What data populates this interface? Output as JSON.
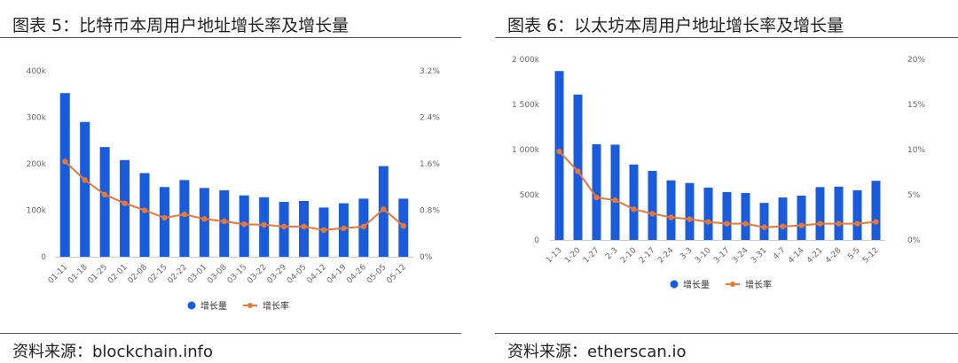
{
  "chart_data": [
    {
      "type": "bar+line",
      "title": "图表 5：比特币本周用户地址增长率及增长量",
      "source": "资料来源：blockchain.info",
      "categories": [
        "01-11",
        "01-18",
        "01-25",
        "02-01",
        "02-08",
        "02-15",
        "02-22",
        "03-01",
        "03-08",
        "03-15",
        "03-22",
        "03-29",
        "04-05",
        "04-12",
        "04-19",
        "04-26",
        "05-05",
        "05-12"
      ],
      "series": [
        {
          "name": "增长量",
          "type": "bar",
          "axis": "left",
          "color": "#1a5bdc",
          "values": [
            352000,
            290000,
            236000,
            208000,
            180000,
            150000,
            165000,
            148000,
            143000,
            132000,
            128000,
            118000,
            120000,
            106000,
            115000,
            125000,
            195000,
            125000
          ]
        },
        {
          "name": "增长率",
          "type": "line",
          "axis": "right",
          "color": "#e8773a",
          "values": [
            1.64,
            1.32,
            1.07,
            0.92,
            0.8,
            0.67,
            0.73,
            0.65,
            0.61,
            0.56,
            0.55,
            0.52,
            0.52,
            0.46,
            0.49,
            0.52,
            0.82,
            0.53
          ]
        }
      ],
      "yleft": {
        "min": 0,
        "max": 400000,
        "ticks": [
          0,
          100000,
          200000,
          300000,
          400000
        ],
        "tick_labels": [
          "0",
          "100k",
          "200k",
          "300k",
          "400k"
        ]
      },
      "yright": {
        "min": 0,
        "max": 3.2,
        "ticks": [
          0,
          0.8,
          1.6,
          2.4,
          3.2
        ],
        "tick_labels": [
          "0%",
          "0.8%",
          "1.6%",
          "2.4%",
          "3.2%"
        ]
      },
      "legend": {
        "position": "bottom",
        "items": [
          "增长量",
          "增长率"
        ]
      },
      "grid": false
    },
    {
      "type": "bar+line",
      "title": "图表 6：以太坊本周用户地址增长率及增长量",
      "source": "资料来源：etherscan.io",
      "categories": [
        "1-13",
        "1-20",
        "1-27",
        "2-3",
        "2-10",
        "2-17",
        "2-24",
        "3-3",
        "3-10",
        "3-17",
        "3-24",
        "3-31",
        "4-7",
        "4-14",
        "4-21",
        "4-28",
        "5-5",
        "5-12"
      ],
      "series": [
        {
          "name": "增长量",
          "type": "bar",
          "axis": "left",
          "color": "#1a5bdc",
          "values": [
            1870000,
            1610000,
            1060000,
            1055000,
            835000,
            765000,
            660000,
            630000,
            580000,
            530000,
            520000,
            410000,
            470000,
            490000,
            585000,
            590000,
            550000,
            655000
          ]
        },
        {
          "name": "增长率",
          "type": "line",
          "axis": "right",
          "color": "#e8773a",
          "values": [
            9.8,
            7.6,
            4.7,
            4.4,
            3.4,
            2.9,
            2.5,
            2.3,
            2.0,
            1.8,
            1.8,
            1.4,
            1.5,
            1.6,
            1.8,
            1.8,
            1.8,
            2.0
          ]
        }
      ],
      "yleft": {
        "min": 0,
        "max": 2000000,
        "ticks": [
          0,
          500000,
          1000000,
          1500000,
          2000000
        ],
        "tick_labels": [
          "0",
          "500k",
          "1 000k",
          "1 500k",
          "2 000k"
        ]
      },
      "yright": {
        "min": 0,
        "max": 20,
        "ticks": [
          0,
          5,
          10,
          15,
          20
        ],
        "tick_labels": [
          "0%",
          "5%",
          "10%",
          "15%",
          "20%"
        ]
      },
      "legend": {
        "position": "bottom",
        "items": [
          "增长量",
          "增长率"
        ]
      },
      "grid": false
    }
  ]
}
